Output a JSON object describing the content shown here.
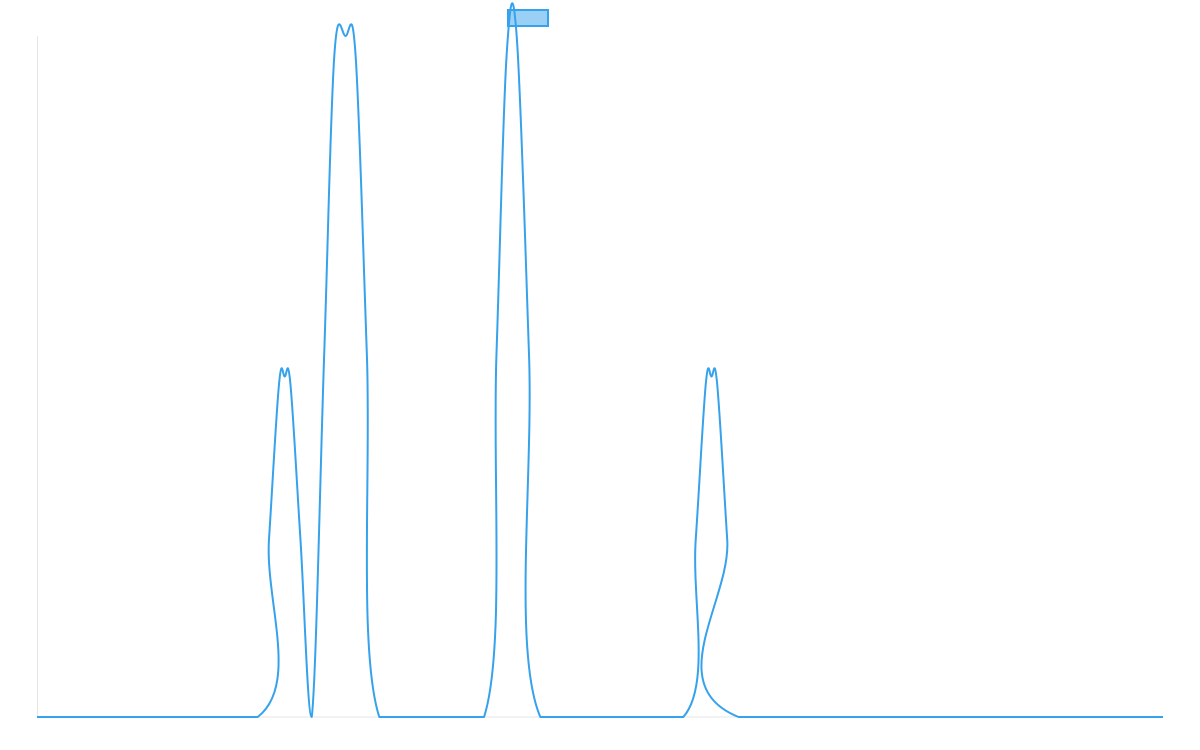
{
  "chart_data": {
    "type": "line",
    "title": "",
    "xlabel": "",
    "ylabel": "",
    "grid": false,
    "legend": {
      "placement": "top-center",
      "entries": [
        {
          "label": "",
          "color": "#36A2EB",
          "fill": "rgba(54,162,235,0.5)"
        }
      ]
    },
    "xlim": [
      0,
      100
    ],
    "ylim": [
      0,
      1
    ],
    "series": [
      {
        "color": "#36A2EB",
        "x": [
          0,
          19.6,
          20.6,
          21.5,
          22.0,
          22.5,
          23.4,
          24.4,
          25.5,
          26.4,
          27.4,
          28.3,
          29.3,
          30.4,
          39.7,
          40.8,
          41.7,
          42.6,
          43.7,
          44.7,
          57.4,
          58.5,
          59.4,
          59.9,
          60.4,
          61.3,
          62.3,
          100
        ],
        "y": [
          0,
          0,
          0.26,
          0.49,
          0.5,
          0.49,
          0.26,
          0,
          0.53,
          0.97,
          1.0,
          0.97,
          0.53,
          0,
          0,
          0.53,
          0.97,
          1.0,
          0.53,
          0,
          0,
          0.26,
          0.49,
          0.5,
          0.49,
          0.26,
          0,
          0
        ]
      }
    ]
  }
}
